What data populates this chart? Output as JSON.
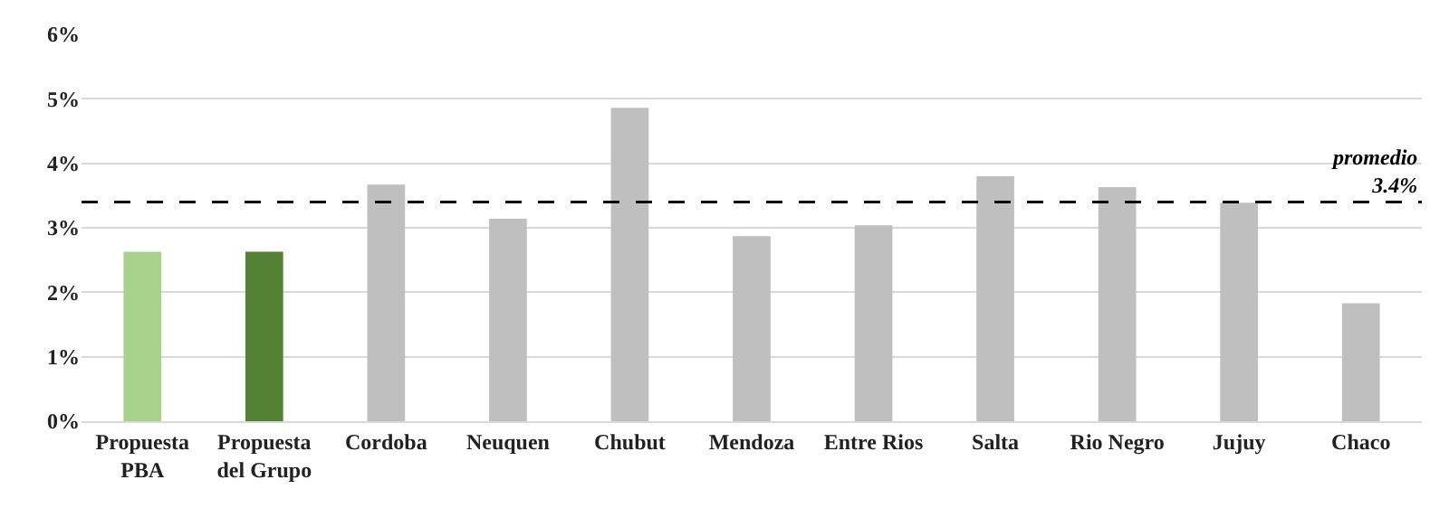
{
  "chart_data": {
    "type": "bar",
    "categories": [
      "Propuesta\nPBA",
      "Propuesta\ndel Grupo",
      "Cordoba",
      "Neuquen",
      "Chubut",
      "Mendoza",
      "Entre Rios",
      "Salta",
      "Rio Negro",
      "Jujuy",
      "Chaco"
    ],
    "values": [
      2.63,
      2.63,
      3.67,
      3.14,
      4.86,
      2.87,
      3.04,
      3.8,
      3.63,
      3.39,
      1.83
    ],
    "colors": [
      "#a9d18e",
      "#548235",
      "#bfbfbf",
      "#bfbfbf",
      "#bfbfbf",
      "#bfbfbf",
      "#bfbfbf",
      "#bfbfbf",
      "#bfbfbf",
      "#bfbfbf",
      "#bfbfbf"
    ],
    "ylim": [
      0,
      6
    ],
    "yticks": [
      {
        "value": 0,
        "label": "0%"
      },
      {
        "value": 1,
        "label": "1%"
      },
      {
        "value": 2,
        "label": "2%"
      },
      {
        "value": 3,
        "label": "3%"
      },
      {
        "value": 4,
        "label": "4%"
      },
      {
        "value": 5,
        "label": "5%"
      },
      {
        "value": 6,
        "label": "6%"
      }
    ],
    "ref_lines": [
      {
        "axis": "y",
        "value": 3.4,
        "label": "promedio\n3.4%",
        "color": "#000000",
        "line_style": "dashed"
      }
    ],
    "grid": "y"
  }
}
